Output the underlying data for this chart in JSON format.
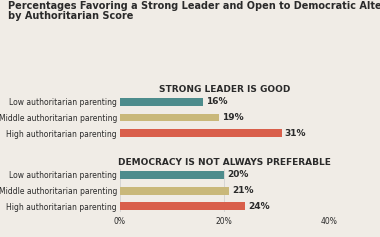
{
  "title_line1": "Percentages Favoring a Strong Leader and Open to Democratic Alternatives",
  "title_line2": "by Authoritarian Score",
  "section1_title": "STRONG LEADER IS GOOD",
  "section2_title": "DEMOCRACY IS NOT ALWAYS PREFERABLE",
  "categories": [
    "Low authoritarian parenting",
    "Middle authoritarian parenting",
    "High authoritarian parenting"
  ],
  "values1": [
    16,
    19,
    31
  ],
  "values2": [
    20,
    21,
    24
  ],
  "colors": [
    "#4d8c8c",
    "#c9b87a",
    "#d95f4b"
  ],
  "xlim": [
    0,
    40
  ],
  "xticks": [
    0,
    20,
    40
  ],
  "xticklabels": [
    "0%",
    "20%",
    "40%"
  ],
  "label_fontsize": 5.5,
  "bar_label_fontsize": 6.5,
  "section_title_fontsize": 6.5,
  "title_fontsize": 7.0,
  "background_color": "#f0ece6",
  "bar_height": 0.5,
  "grid_color": "#cccccc",
  "text_color": "#2a2a2a"
}
